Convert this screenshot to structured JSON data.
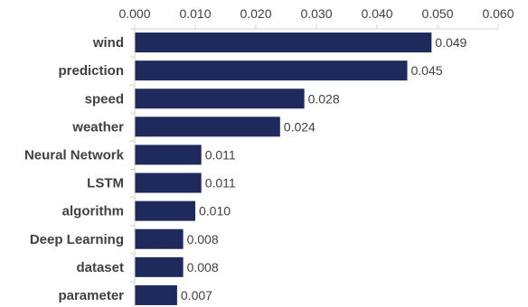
{
  "chart_data": {
    "type": "bar",
    "orientation": "horizontal",
    "categories": [
      "wind",
      "prediction",
      "speed",
      "weather",
      "Neural Network",
      "LSTM",
      "algorithm",
      "Deep Learning",
      "dataset",
      "parameter"
    ],
    "values": [
      0.049,
      0.045,
      0.028,
      0.024,
      0.011,
      0.011,
      0.01,
      0.008,
      0.008,
      0.007
    ],
    "data_labels": [
      "0.049",
      "0.045",
      "0.028",
      "0.024",
      "0.011",
      "0.011",
      "0.010",
      "0.008",
      "0.008",
      "0.007"
    ],
    "x_ticks": [
      0,
      0.01,
      0.02,
      0.03,
      0.04,
      0.05,
      0.06
    ],
    "x_tick_labels": [
      "0.000",
      "0.010",
      "0.020",
      "0.030",
      "0.040",
      "0.050",
      "0.060"
    ],
    "xlim": [
      0,
      0.06
    ],
    "x_axis_position": "top",
    "grid": false,
    "legend": "none",
    "title": "",
    "xlabel": "",
    "ylabel": "",
    "colors": {
      "bar": "#1f2a5c",
      "axis": "#d0d0d0",
      "text": "#404040"
    }
  }
}
